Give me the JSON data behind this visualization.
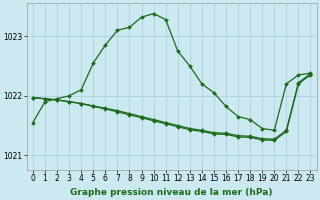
{
  "title": "Graphe pression niveau de la mer (hPa)",
  "background_color": "#cce8f0",
  "grid_color": "#aaccdd",
  "line_color": "#1a6b1a",
  "ylim": [
    1020.75,
    1023.55
  ],
  "yticks": [
    1021,
    1022,
    1023
  ],
  "xlim": [
    -0.5,
    23.5
  ],
  "xticks": [
    0,
    1,
    2,
    3,
    4,
    5,
    6,
    7,
    8,
    9,
    10,
    11,
    12,
    13,
    14,
    15,
    16,
    17,
    18,
    19,
    20,
    21,
    22,
    23
  ],
  "series1": [
    1021.55,
    1021.9,
    1021.95,
    1022.0,
    1022.1,
    1022.55,
    1022.85,
    1023.1,
    1023.15,
    1023.32,
    1023.38,
    1023.28,
    1022.75,
    1022.5,
    1022.2,
    1022.05,
    1021.82,
    1021.65,
    1021.6,
    1021.45,
    1021.42,
    1022.2,
    1022.35,
    1022.38
  ],
  "series2": [
    1021.97,
    1021.95,
    1021.93,
    1021.9,
    1021.87,
    1021.83,
    1021.79,
    1021.75,
    1021.7,
    1021.65,
    1021.6,
    1021.55,
    1021.5,
    1021.45,
    1021.42,
    1021.38,
    1021.37,
    1021.33,
    1021.32,
    1021.28,
    1021.27,
    1021.42,
    1022.22,
    1022.37
  ],
  "series3": [
    1021.97,
    1021.95,
    1021.93,
    1021.9,
    1021.87,
    1021.82,
    1021.78,
    1021.73,
    1021.68,
    1021.63,
    1021.58,
    1021.53,
    1021.48,
    1021.43,
    1021.4,
    1021.36,
    1021.35,
    1021.31,
    1021.3,
    1021.26,
    1021.25,
    1021.4,
    1022.2,
    1022.35
  ],
  "marker_size": 2.0,
  "linewidth": 0.9,
  "tick_fontsize": 5.5,
  "label_fontsize": 6.5
}
